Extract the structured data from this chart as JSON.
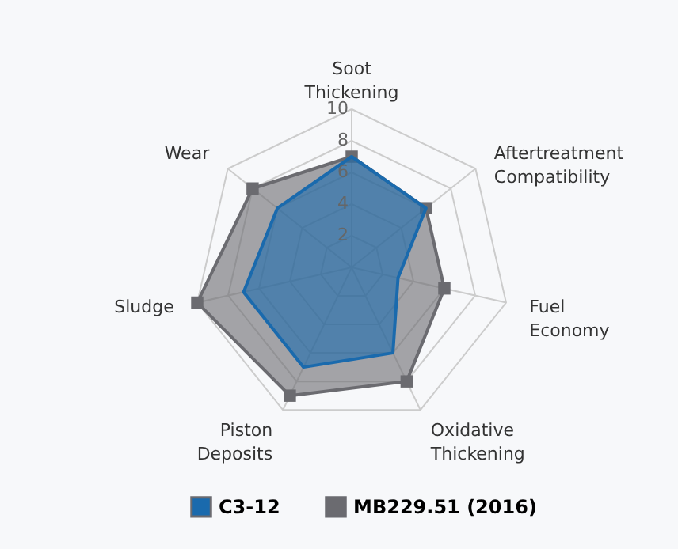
{
  "chart_data": {
    "type": "radar",
    "categories": [
      "Soot Thickening",
      "Aftertreatment Compatibility",
      "Fuel Economy",
      "Oxidative Thickening",
      "Piston Deposits",
      "Sludge",
      "Wear"
    ],
    "series": [
      {
        "name": "C3-12",
        "color": "#1a6aad",
        "marker": "none",
        "values": [
          7,
          6,
          3,
          6,
          7,
          7,
          6
        ]
      },
      {
        "name": "MB229.51 (2016)",
        "color": "#6b6b70",
        "marker": "square",
        "values": [
          7,
          6,
          6,
          8,
          9,
          10,
          8
        ]
      }
    ],
    "ylim": [
      0,
      10
    ],
    "yticks": [
      2,
      4,
      6,
      8,
      10
    ],
    "grid": true,
    "legend": "bottom"
  }
}
